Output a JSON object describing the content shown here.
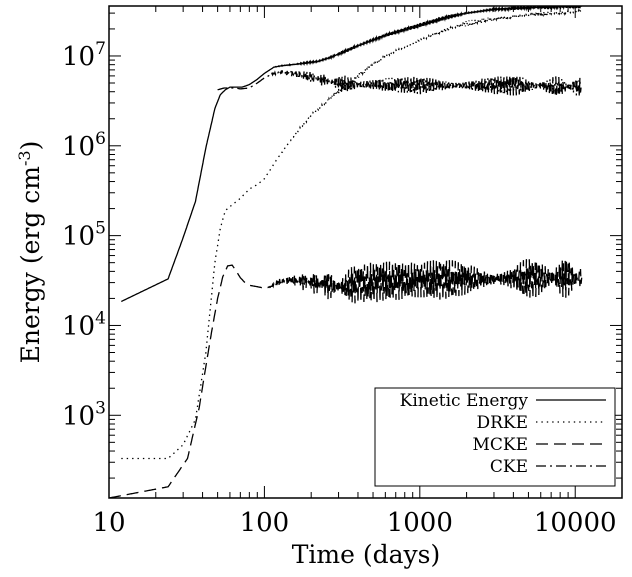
{
  "chart_data": {
    "type": "line",
    "title": "",
    "xlabel": "Time  (days)",
    "ylabel_main": "Energy  (erg cm",
    "ylabel_sup": "-3",
    "ylabel_close": ")",
    "x_scale": "log",
    "y_scale": "log",
    "xlim": [
      10,
      20000
    ],
    "ylim": [
      120,
      36000000
    ],
    "grid": false,
    "legend_position": "bottom-right",
    "x_ticks": [
      {
        "value": 10,
        "label": "10"
      },
      {
        "value": 100,
        "label": "100"
      },
      {
        "value": 1000,
        "label": "1000"
      },
      {
        "value": 10000,
        "label": "10000"
      }
    ],
    "y_ticks": [
      {
        "value": 1000,
        "base": "10",
        "exp": "3"
      },
      {
        "value": 10000,
        "base": "10",
        "exp": "4"
      },
      {
        "value": 100000,
        "base": "10",
        "exp": "5"
      },
      {
        "value": 1000000,
        "base": "10",
        "exp": "6"
      },
      {
        "value": 10000000,
        "base": "10",
        "exp": "7"
      }
    ],
    "series": [
      {
        "name": "Kinetic Energy",
        "style": "solid",
        "noise": 0.015,
        "x": [
          12,
          24,
          30,
          36,
          42,
          48,
          52,
          56,
          60,
          65,
          72,
          80,
          90,
          100,
          115,
          130,
          150,
          180,
          220,
          260,
          300,
          400,
          600,
          1000,
          1500,
          2000,
          3000,
          5000,
          8000,
          11000
        ],
        "y": [
          18500,
          33000,
          95000,
          240000,
          950000,
          2600000,
          3700000,
          4200000,
          4500000,
          4500000,
          4500000,
          4800000,
          5500000,
          6400000,
          7500000,
          7800000,
          8000000,
          8300000,
          8700000,
          9500000,
          10500000,
          13000000,
          17000000,
          22000000,
          27000000,
          30000000,
          33000000,
          34500000,
          35500000,
          35800000
        ]
      },
      {
        "name": "DRKE",
        "style": "dotted",
        "noise": 0.02,
        "x": [
          12,
          24,
          30,
          36,
          42,
          48,
          52,
          56,
          62,
          70,
          80,
          90,
          100,
          120,
          150,
          200,
          300,
          400,
          600,
          1000,
          1500,
          2000,
          3000,
          5000,
          8000,
          11000
        ],
        "y": [
          330,
          330,
          470,
          900,
          5000,
          50000,
          120000,
          190000,
          220000,
          260000,
          330000,
          370000,
          430000,
          700000,
          1200000,
          2200000,
          4000000,
          6000000,
          10000000,
          15000000,
          20000000,
          23000000,
          26000000,
          28500000,
          30500000,
          31500000
        ]
      },
      {
        "name": "MCKE",
        "style": "dashed",
        "noise": 0.14,
        "x": [
          10,
          24,
          32,
          38,
          42,
          46,
          50,
          54,
          58,
          62,
          66,
          70,
          75,
          80,
          90,
          100,
          110,
          120,
          140,
          160,
          200,
          250,
          300,
          400,
          600,
          1000,
          2000,
          4000,
          7000,
          11000
        ],
        "y": [
          120,
          160,
          330,
          1200,
          3500,
          9000,
          20000,
          35000,
          46000,
          47000,
          40000,
          34000,
          30000,
          28000,
          27000,
          26000,
          27000,
          30000,
          32000,
          31000,
          30000,
          28000,
          27000,
          29000,
          31000,
          32000,
          33000,
          33000,
          34000,
          34000
        ]
      },
      {
        "name": "CKE",
        "style": "dashdot",
        "noise": 0.07,
        "x": [
          50,
          55,
          60,
          65,
          70,
          80,
          90,
          100,
          110,
          120,
          130,
          140,
          160,
          180,
          200,
          250,
          300,
          400,
          600,
          1000,
          2000,
          4000,
          7000,
          11000
        ],
        "y": [
          4200000,
          4400000,
          4400000,
          4400000,
          4300000,
          4400000,
          5000000,
          5700000,
          6200000,
          6500000,
          6600000,
          6500000,
          6300000,
          6100000,
          5800000,
          5300000,
          4900000,
          4800000,
          4800000,
          4700000,
          4700000,
          4700000,
          4600000,
          4500000
        ]
      }
    ]
  }
}
